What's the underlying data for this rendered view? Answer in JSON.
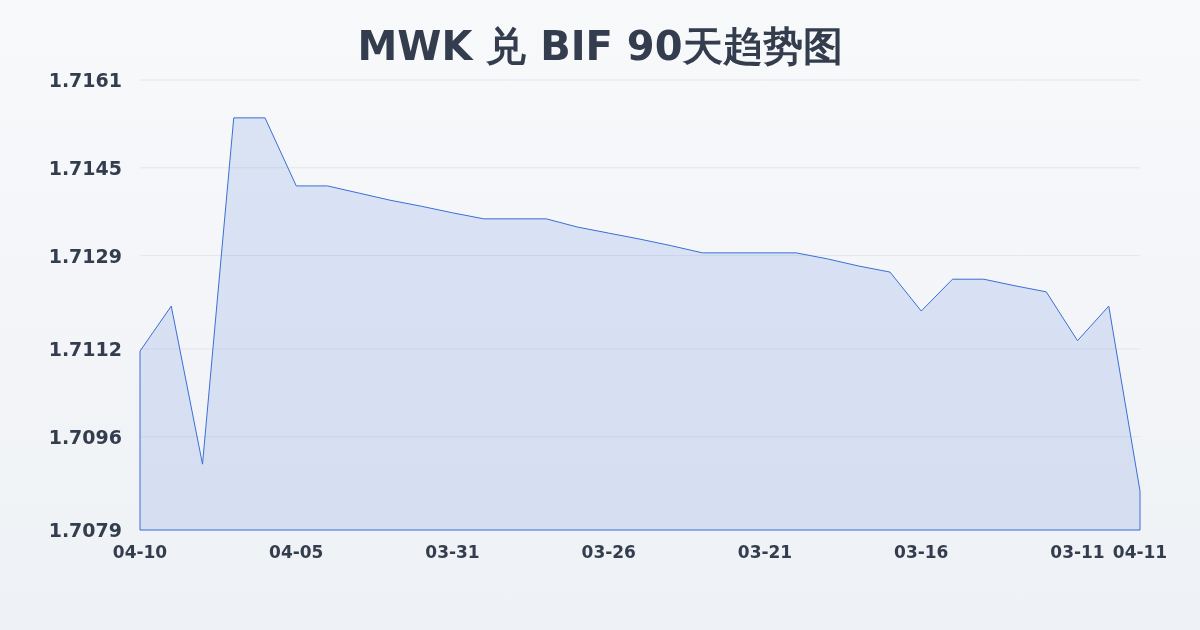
{
  "chart_data": {
    "type": "area",
    "title": "MWK 兑 BIF 90天趋势图",
    "categories": [
      "04-10",
      null,
      null,
      null,
      null,
      "04-05",
      null,
      null,
      null,
      null,
      "03-31",
      null,
      null,
      null,
      null,
      "03-26",
      null,
      null,
      null,
      null,
      "03-21",
      null,
      null,
      null,
      null,
      "03-16",
      null,
      null,
      null,
      null,
      "03-11",
      null,
      "04-11"
    ],
    "values": [
      1.71116,
      1.71198,
      1.7091,
      1.71541,
      1.71541,
      1.71417,
      1.71417,
      1.71404,
      1.71391,
      1.7138,
      1.71368,
      1.71357,
      1.71357,
      1.71357,
      1.71342,
      1.71331,
      1.7132,
      1.71308,
      1.71295,
      1.71295,
      1.71295,
      1.71295,
      1.71284,
      1.71271,
      1.7126,
      1.71189,
      1.71247,
      1.71247,
      1.71235,
      1.71224,
      1.71135,
      1.71198,
      1.70861
    ],
    "color": "#3b6fd4",
    "ylim": [
      1.7079,
      1.7161
    ],
    "yticks": [
      1.7079,
      1.7096,
      1.7112,
      1.7129,
      1.7145,
      1.7161
    ],
    "grid": "y"
  }
}
